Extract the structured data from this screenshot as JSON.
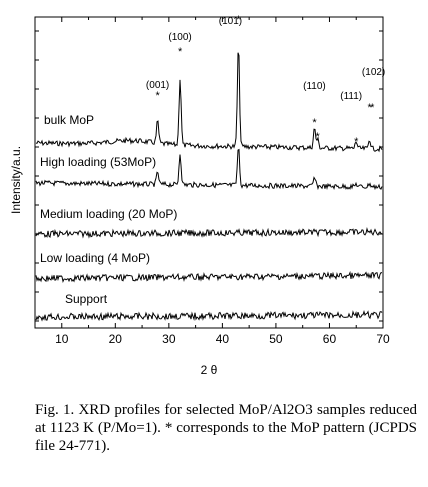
{
  "chart_data": {
    "type": "line",
    "xlabel": "2 θ",
    "ylabel": "Intensity/a.u.",
    "xlim": [
      5,
      70
    ],
    "x_ticks": [
      10,
      20,
      30,
      40,
      50,
      60,
      70
    ],
    "series": [
      {
        "name": "bulk MoP",
        "peaks": [
          {
            "x": 27.9,
            "height": 0.32
          },
          {
            "x": 32.1,
            "height": 0.95
          },
          {
            "x": 43.0,
            "height": 1.45
          },
          {
            "x": 57.2,
            "height": 0.28
          },
          {
            "x": 57.8,
            "height": 0.12
          },
          {
            "x": 65.0,
            "height": 0.1
          },
          {
            "x": 67.5,
            "height": 0.14
          }
        ]
      },
      {
        "name": "High loading (53MoP)",
        "peaks": [
          {
            "x": 27.9,
            "height": 0.18
          },
          {
            "x": 32.1,
            "height": 0.45
          },
          {
            "x": 43.0,
            "height": 0.55
          },
          {
            "x": 57.2,
            "height": 0.12
          },
          {
            "x": 65.0,
            "height": 0.04
          },
          {
            "x": 67.5,
            "height": 0.05
          }
        ]
      },
      {
        "name": "Medium loading (20 MoP)",
        "peaks": []
      },
      {
        "name": "Low loading (4 MoP)",
        "peaks": []
      },
      {
        "name": "Support",
        "peaks": []
      }
    ],
    "peak_annotations": [
      {
        "label": "(001)",
        "x": 27.9,
        "star_x": 27.9
      },
      {
        "label": "(100)",
        "x": 32.1,
        "star_x": 32.1
      },
      {
        "label": "(101)",
        "x": 43.0,
        "star_x": 43.0
      },
      {
        "label": "(110)",
        "x": 57.2,
        "star_x": 57.2
      },
      {
        "label": "",
        "x": 57.8,
        "star_x": 57.8
      },
      {
        "label": "(111)",
        "x": 65.0,
        "star_x": 65.0
      },
      {
        "label": "(102)",
        "x": 67.5,
        "star_x": 67.5
      }
    ],
    "star_symbol": "*"
  },
  "caption": "Fig. 1. XRD profiles for selected MoP/Al2O3 samples reduced at 1123 K (P/Mo=1). * corresponds to the MoP pattern (JCPDS file 24-771)."
}
